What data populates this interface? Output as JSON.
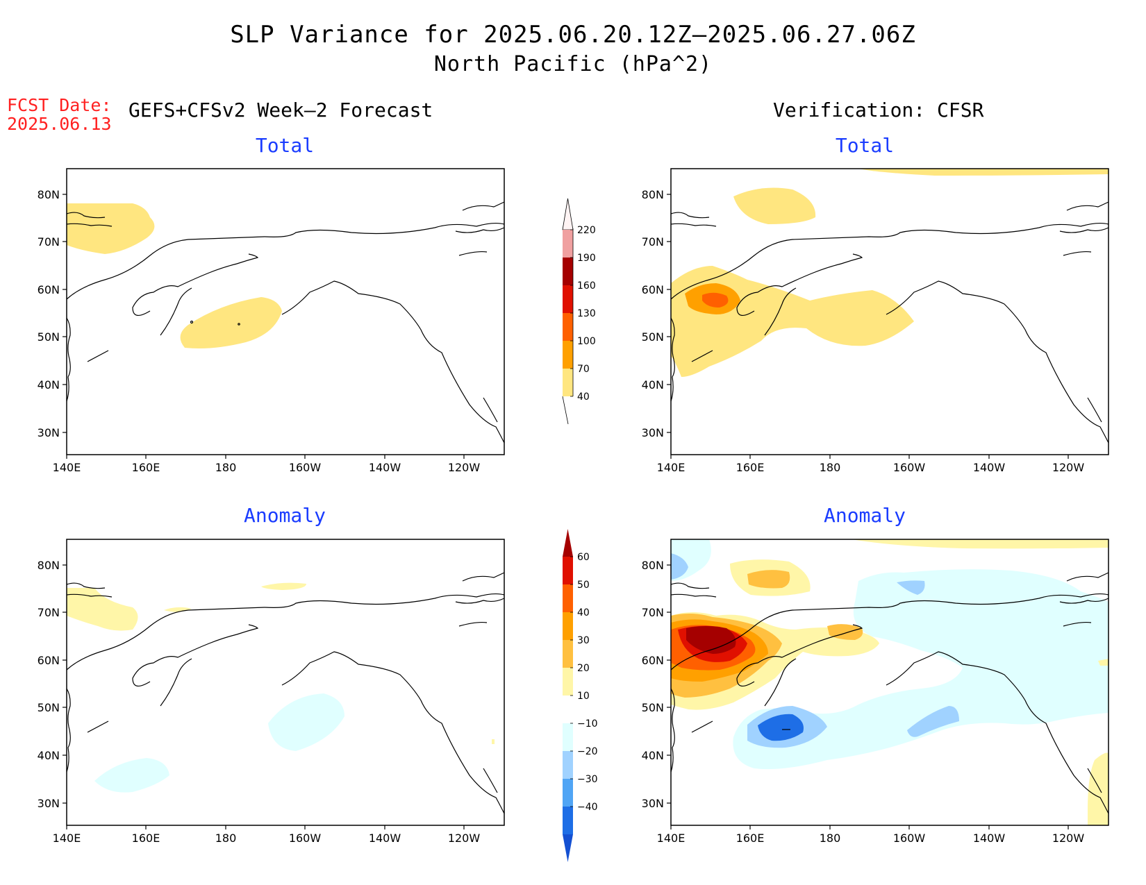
{
  "title": {
    "line1": "SLP Variance for 2025.06.20.12Z–2025.06.27.06Z",
    "line2": "North Pacific (hPa^2)"
  },
  "fcst_date": {
    "label": "FCST Date:",
    "value": "2025.06.13"
  },
  "left_header": "GEFS+CFSv2 Week–2 Forecast",
  "right_header": "Verification: CFSR",
  "panels": {
    "forecast_total": {
      "subtitle": "Total"
    },
    "cfsr_total": {
      "subtitle": "Total"
    },
    "forecast_anomaly": {
      "subtitle": "Anomaly"
    },
    "cfsr_anomaly": {
      "subtitle": "Anomaly"
    }
  },
  "axes": {
    "lon_ticks": [
      "140E",
      "160E",
      "180",
      "160W",
      "140W",
      "120W"
    ],
    "lat_ticks": [
      "80N",
      "70N",
      "60N",
      "50N",
      "40N",
      "30N"
    ],
    "lon_range": [
      "140E",
      "110W"
    ],
    "lat_range": [
      "25N",
      "85N"
    ]
  },
  "colorbars": {
    "total": {
      "levels": [
        "40",
        "70",
        "100",
        "130",
        "160",
        "190",
        "220"
      ],
      "colors": [
        "#ffe680",
        "#ffa000",
        "#ff6000",
        "#e01000",
        "#a50000",
        "#f0a0a0",
        "#ffdede"
      ]
    },
    "anomaly": {
      "levels": [
        "60",
        "50",
        "40",
        "30",
        "20",
        "10",
        "−10",
        "−20",
        "−30",
        "−40"
      ],
      "colors": [
        "#a50000",
        "#e01000",
        "#ff6000",
        "#ffa000",
        "#ffc040",
        "#fff6a8",
        "#ffffff",
        "#e0ffff",
        "#a0d2ff",
        "#50a5f5",
        "#1e6ee6",
        "#1450d2"
      ]
    }
  }
}
